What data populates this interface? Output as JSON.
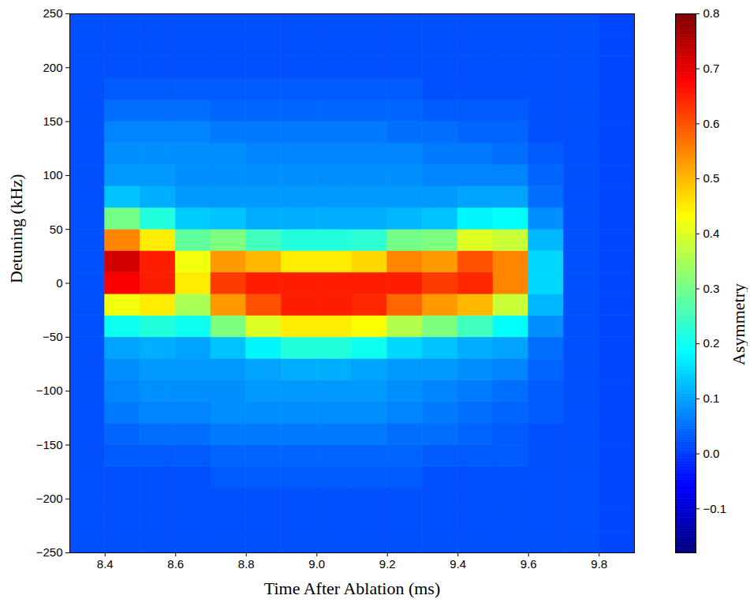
{
  "chart_data": {
    "type": "heatmap",
    "x_label": "Time After Ablation (ms)",
    "y_label": "Detuning (kHz)",
    "xlim": [
      8.3,
      9.9
    ],
    "xticks": [
      8.4,
      8.6,
      8.8,
      9,
      9.2,
      9.4,
      9.6,
      9.8
    ],
    "ylim": [
      -250,
      250
    ],
    "yticks": [
      -250,
      -200,
      -150,
      -100,
      -50,
      0,
      50,
      100,
      150,
      200,
      250
    ],
    "cells": {
      "x_edges": [
        8.3,
        8.4,
        8.5,
        8.6,
        8.7,
        8.8,
        8.9,
        9.0,
        9.1,
        9.2,
        9.3,
        9.4,
        9.5,
        9.6,
        9.7,
        9.8,
        9.9
      ],
      "y_edges": [
        -250,
        -230,
        -210,
        -190,
        -170,
        -150,
        -130,
        -110,
        -90,
        -70,
        -50,
        -30,
        -10,
        10,
        30,
        50,
        70,
        90,
        110,
        130,
        150,
        170,
        190,
        210,
        230,
        250
      ],
      "values": [
        [
          0.02,
          0.02,
          0.02,
          0.02,
          0.02,
          0.02,
          0.02,
          0.02,
          0.02,
          0.02,
          0.02,
          0.02,
          0.02,
          0.02,
          0.02,
          0.02,
          0.02,
          0.02,
          0.02,
          0.02,
          0.02,
          0.02,
          0.02,
          0.02,
          0.02
        ],
        [
          0.02,
          0.02,
          0.02,
          0.02,
          0.03,
          0.04,
          0.06,
          0.07,
          0.08,
          0.1,
          0.2,
          0.42,
          0.68,
          0.72,
          0.55,
          0.3,
          0.13,
          0.09,
          0.08,
          0.07,
          0.05,
          0.03,
          0.02,
          0.02,
          0.02
        ],
        [
          0.02,
          0.02,
          0.02,
          0.02,
          0.03,
          0.05,
          0.07,
          0.08,
          0.09,
          0.11,
          0.22,
          0.45,
          0.65,
          0.65,
          0.45,
          0.22,
          0.11,
          0.09,
          0.08,
          0.07,
          0.05,
          0.03,
          0.02,
          0.02,
          0.02
        ],
        [
          0.02,
          0.02,
          0.02,
          0.02,
          0.03,
          0.05,
          0.07,
          0.08,
          0.09,
          0.1,
          0.2,
          0.35,
          0.45,
          0.42,
          0.28,
          0.14,
          0.09,
          0.08,
          0.08,
          0.07,
          0.05,
          0.03,
          0.02,
          0.02,
          0.02
        ],
        [
          0.02,
          0.02,
          0.02,
          0.03,
          0.04,
          0.06,
          0.08,
          0.08,
          0.09,
          0.13,
          0.31,
          0.53,
          0.62,
          0.53,
          0.31,
          0.13,
          0.09,
          0.08,
          0.08,
          0.06,
          0.04,
          0.03,
          0.02,
          0.02,
          0.02
        ],
        [
          0.02,
          0.02,
          0.02,
          0.03,
          0.04,
          0.06,
          0.08,
          0.09,
          0.1,
          0.18,
          0.4,
          0.6,
          0.65,
          0.5,
          0.25,
          0.11,
          0.09,
          0.08,
          0.07,
          0.06,
          0.04,
          0.03,
          0.02,
          0.02,
          0.02
        ],
        [
          0.02,
          0.02,
          0.02,
          0.03,
          0.04,
          0.06,
          0.08,
          0.09,
          0.11,
          0.22,
          0.45,
          0.65,
          0.65,
          0.45,
          0.22,
          0.11,
          0.09,
          0.08,
          0.07,
          0.06,
          0.04,
          0.03,
          0.02,
          0.02,
          0.02
        ],
        [
          0.02,
          0.02,
          0.02,
          0.03,
          0.04,
          0.06,
          0.08,
          0.09,
          0.11,
          0.22,
          0.45,
          0.65,
          0.65,
          0.45,
          0.22,
          0.11,
          0.09,
          0.08,
          0.07,
          0.06,
          0.04,
          0.03,
          0.02,
          0.02,
          0.02
        ],
        [
          0.02,
          0.02,
          0.02,
          0.03,
          0.04,
          0.06,
          0.08,
          0.09,
          0.1,
          0.2,
          0.43,
          0.64,
          0.65,
          0.47,
          0.23,
          0.11,
          0.09,
          0.08,
          0.07,
          0.06,
          0.04,
          0.03,
          0.02,
          0.02,
          0.02
        ],
        [
          0.02,
          0.02,
          0.02,
          0.03,
          0.04,
          0.05,
          0.07,
          0.08,
          0.09,
          0.15,
          0.36,
          0.58,
          0.65,
          0.55,
          0.3,
          0.12,
          0.09,
          0.08,
          0.07,
          0.05,
          0.04,
          0.03,
          0.02,
          0.02,
          0.02
        ],
        [
          0.02,
          0.02,
          0.02,
          0.02,
          0.03,
          0.05,
          0.06,
          0.07,
          0.09,
          0.13,
          0.31,
          0.53,
          0.62,
          0.53,
          0.31,
          0.13,
          0.09,
          0.07,
          0.06,
          0.05,
          0.03,
          0.02,
          0.02,
          0.02,
          0.02
        ],
        [
          0.02,
          0.02,
          0.02,
          0.02,
          0.03,
          0.04,
          0.05,
          0.06,
          0.08,
          0.11,
          0.25,
          0.5,
          0.64,
          0.6,
          0.4,
          0.18,
          0.1,
          0.07,
          0.06,
          0.04,
          0.03,
          0.02,
          0.02,
          0.02,
          0.02
        ],
        [
          0.02,
          0.02,
          0.02,
          0.02,
          0.03,
          0.03,
          0.04,
          0.05,
          0.07,
          0.1,
          0.19,
          0.38,
          0.55,
          0.55,
          0.38,
          0.19,
          0.1,
          0.07,
          0.05,
          0.04,
          0.03,
          0.02,
          0.02,
          0.02,
          0.02
        ],
        [
          0.02,
          0.02,
          0.02,
          0.02,
          0.02,
          0.02,
          0.03,
          0.03,
          0.04,
          0.05,
          0.08,
          0.12,
          0.15,
          0.15,
          0.12,
          0.08,
          0.05,
          0.04,
          0.03,
          0.02,
          0.02,
          0.02,
          0.02,
          0.02,
          0.02
        ],
        [
          0.02,
          0.02,
          0.02,
          0.02,
          0.02,
          0.02,
          0.02,
          0.02,
          0.02,
          0.02,
          0.02,
          0.02,
          0.02,
          0.02,
          0.02,
          0.02,
          0.02,
          0.02,
          0.02,
          0.02,
          0.02,
          0.02,
          0.02,
          0.02,
          0.02
        ],
        [
          0.01,
          0.01,
          0.01,
          0.01,
          0.01,
          0.01,
          0.01,
          0.01,
          0.01,
          0.01,
          0.01,
          0.01,
          0.01,
          0.01,
          0.01,
          0.01,
          0.01,
          0.01,
          0.01,
          0.01,
          0.01,
          0.01,
          0.01,
          0.01,
          0.01
        ]
      ]
    },
    "colorbar": {
      "label": "Asymmetry",
      "range": [
        -0.18,
        0.8
      ],
      "ticks": [
        -0.1,
        0,
        0.1,
        0.2,
        0.3,
        0.4,
        0.5,
        0.6,
        0.7,
        0.8
      ]
    }
  }
}
